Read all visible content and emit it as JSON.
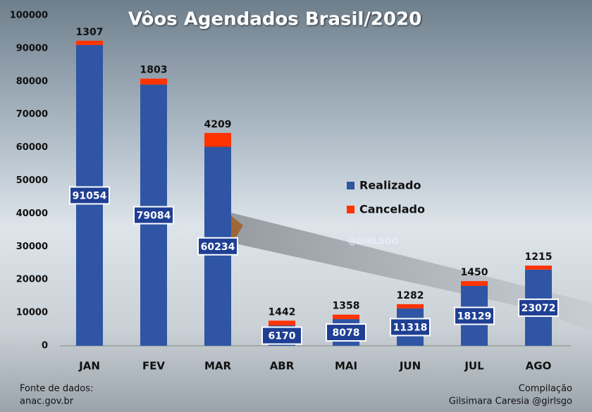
{
  "chart_data": {
    "type": "bar",
    "stacked": true,
    "title": "Vôos Agendados Brasil/2020",
    "categories": [
      "JAN",
      "FEV",
      "MAR",
      "ABR",
      "MAI",
      "JUN",
      "JUL",
      "AGO"
    ],
    "series": [
      {
        "name": "Realizado",
        "color": "#2f55a4",
        "values": [
          91054,
          79084,
          60234,
          6170,
          8078,
          11318,
          18129,
          23072
        ]
      },
      {
        "name": "Cancelado",
        "color": "#ff3300",
        "values": [
          1307,
          1803,
          4209,
          1442,
          1358,
          1282,
          1450,
          1215
        ]
      }
    ],
    "ylim": [
      0,
      100000
    ],
    "yticks": [
      0,
      10000,
      20000,
      30000,
      40000,
      50000,
      60000,
      70000,
      80000,
      90000,
      100000
    ],
    "legend": "right",
    "watermark": "@GIRLSGO",
    "source": [
      "Fonte de dados:",
      "anac.gov.br"
    ],
    "credit": [
      "Compilação",
      "Gilsimara Caresia @girlsgo"
    ]
  }
}
